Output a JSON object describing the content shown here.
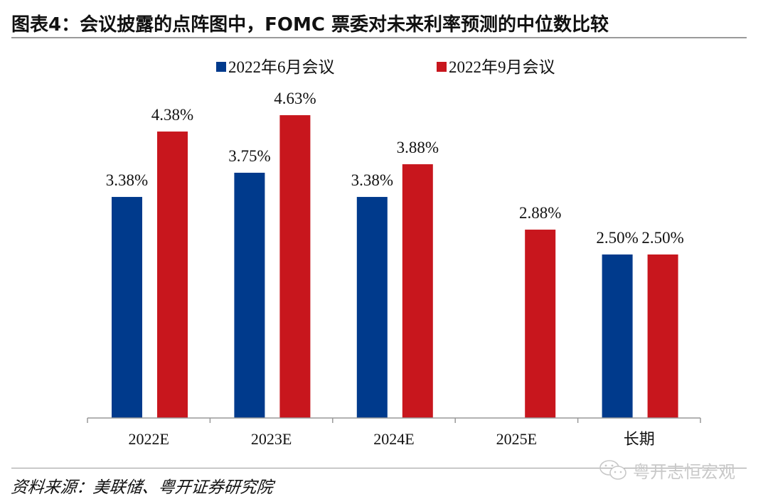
{
  "title": "图表4：会议披露的点阵图中，FOMC 票委对未来利率预测的中位数比较",
  "source": "资料来源：美联储、粤开证券研究院",
  "watermark": "粤开志恒宏观",
  "colors": {
    "june": "#003A8C",
    "september": "#C8161D",
    "axis": "#999999"
  },
  "chart_data": {
    "type": "bar",
    "title": "图表4：会议披露的点阵图中，FOMC 票委对未来利率预测的中位数比较",
    "xlabel": "",
    "ylabel": "",
    "categories": [
      "2022E",
      "2023E",
      "2024E",
      "2025E",
      "长期"
    ],
    "series": [
      {
        "name": "2022年6月会议",
        "values": [
          3.38,
          3.75,
          3.38,
          null,
          2.5
        ],
        "labels": [
          "3.38%",
          "3.75%",
          "3.38%",
          "",
          "2.50%"
        ]
      },
      {
        "name": "2022年9月会议",
        "values": [
          4.38,
          4.63,
          3.88,
          2.88,
          2.5
        ],
        "labels": [
          "4.38%",
          "4.63%",
          "3.88%",
          "2.88%",
          "2.50%"
        ]
      }
    ],
    "ylim": [
      0,
      5.4
    ],
    "grid": false,
    "legend": "top-center",
    "unit": "%"
  }
}
